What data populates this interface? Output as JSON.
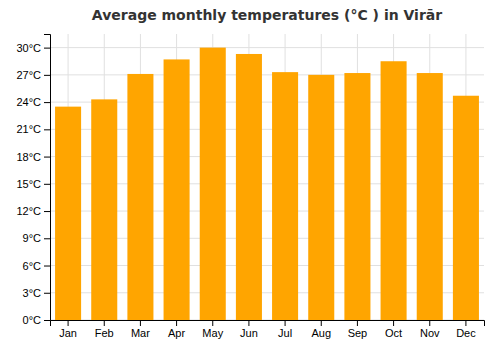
{
  "chart_data": {
    "type": "bar",
    "title": "Average monthly temperatures (°C ) in Virār",
    "categories": [
      "Jan",
      "Feb",
      "Mar",
      "Apr",
      "May",
      "Jun",
      "Jul",
      "Aug",
      "Sep",
      "Oct",
      "Nov",
      "Dec"
    ],
    "values": [
      23.5,
      24.3,
      27.1,
      28.7,
      30.0,
      29.3,
      27.3,
      27.0,
      27.2,
      28.5,
      27.2,
      24.7
    ],
    "color": "#FFA500",
    "ylim": [
      0,
      31.5
    ],
    "yticks": [
      {
        "value": 0,
        "label": "0°C"
      },
      {
        "value": 3,
        "label": "3°C"
      },
      {
        "value": 6,
        "label": "6°C"
      },
      {
        "value": 9,
        "label": "9°C"
      },
      {
        "value": 12,
        "label": "12°C"
      },
      {
        "value": 15,
        "label": "15°C"
      },
      {
        "value": 18,
        "label": "18°C"
      },
      {
        "value": 21,
        "label": "21°C"
      },
      {
        "value": 24,
        "label": "24°C"
      },
      {
        "value": 27,
        "label": "27°C"
      },
      {
        "value": 30,
        "label": "30°C"
      }
    ],
    "grid": true
  }
}
